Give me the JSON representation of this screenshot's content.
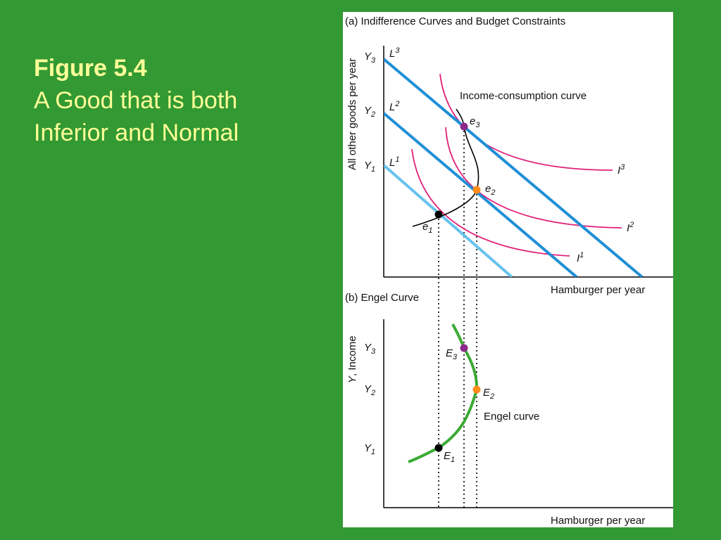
{
  "slide": {
    "figure_number": "Figure 5.4",
    "subtitle_line1": "A Good that is both",
    "subtitle_line2": "Inferior and Normal"
  },
  "panel_a": {
    "title": "(a) Indifference Curves and Budget Constraints",
    "y_axis_label": "All other goods per year",
    "x_axis_label": "Hamburger per year",
    "income_consumption_label": "Income-consumption curve",
    "income_levels": [
      {
        "base": "Y",
        "sub": "3"
      },
      {
        "base": "Y",
        "sub": "2"
      },
      {
        "base": "Y",
        "sub": "1"
      }
    ],
    "budget_lines": [
      {
        "base": "L",
        "sup": "3",
        "color": "#1f8fd6"
      },
      {
        "base": "L",
        "sup": "2",
        "color": "#1f8fd6"
      },
      {
        "base": "L",
        "sup": "1",
        "color": "#66c2ee"
      }
    ],
    "indifference_curves": [
      {
        "base": "I",
        "sup": "3"
      },
      {
        "base": "I",
        "sup": "2"
      },
      {
        "base": "I",
        "sup": "1"
      }
    ],
    "equilibria": [
      {
        "base": "e",
        "sub": "3",
        "color": "#8b2a8b"
      },
      {
        "base": "e",
        "sub": "2",
        "color": "#ff8c1a"
      },
      {
        "base": "e",
        "sub": "1",
        "color": "#000000"
      }
    ],
    "curve_color": "#e0207a"
  },
  "panel_b": {
    "title": "(b) Engel Curve",
    "y_axis_label_italic": "Y",
    "y_axis_label_rest": ", Income",
    "x_axis_label": "Hamburger per year",
    "engel_label": "Engel curve",
    "engel_color": "#3aaa35",
    "income_levels": [
      {
        "base": "Y",
        "sub": "3"
      },
      {
        "base": "Y",
        "sub": "2"
      },
      {
        "base": "Y",
        "sub": "1"
      }
    ],
    "points": [
      {
        "base": "E",
        "sub": "3",
        "color": "#8b2a8b"
      },
      {
        "base": "E",
        "sub": "2",
        "color": "#ff8c1a"
      },
      {
        "base": "E",
        "sub": "1",
        "color": "#000000"
      }
    ]
  }
}
